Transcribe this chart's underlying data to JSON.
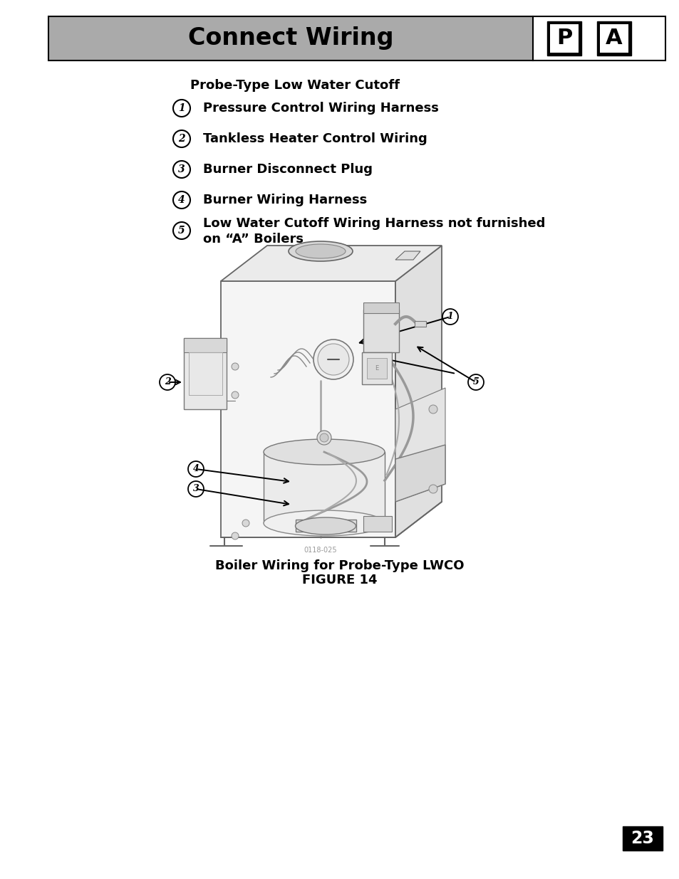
{
  "title": "Connect Wiring",
  "title_bg_color": "#aaaaaa",
  "title_text_color": "#000000",
  "page_bg_color": "#ffffff",
  "subtitle": "Probe-Type Low Water Cutoff",
  "items": [
    {
      "num": "1",
      "text": "Pressure Control Wiring Harness"
    },
    {
      "num": "2",
      "text": "Tankless Heater Control Wiring"
    },
    {
      "num": "3",
      "text": "Burner Disconnect Plug"
    },
    {
      "num": "4",
      "text": "Burner Wiring Harness"
    },
    {
      "num": "5",
      "text": "Low Water Cutoff Wiring Harness not furnished\non “A” Boilers"
    }
  ],
  "caption_line1": "Boiler Wiring for Probe-Type LWCO",
  "caption_line2": "FIGURE 14",
  "page_number": "23",
  "line_color": "#888888",
  "dark_line_color": "#333333"
}
